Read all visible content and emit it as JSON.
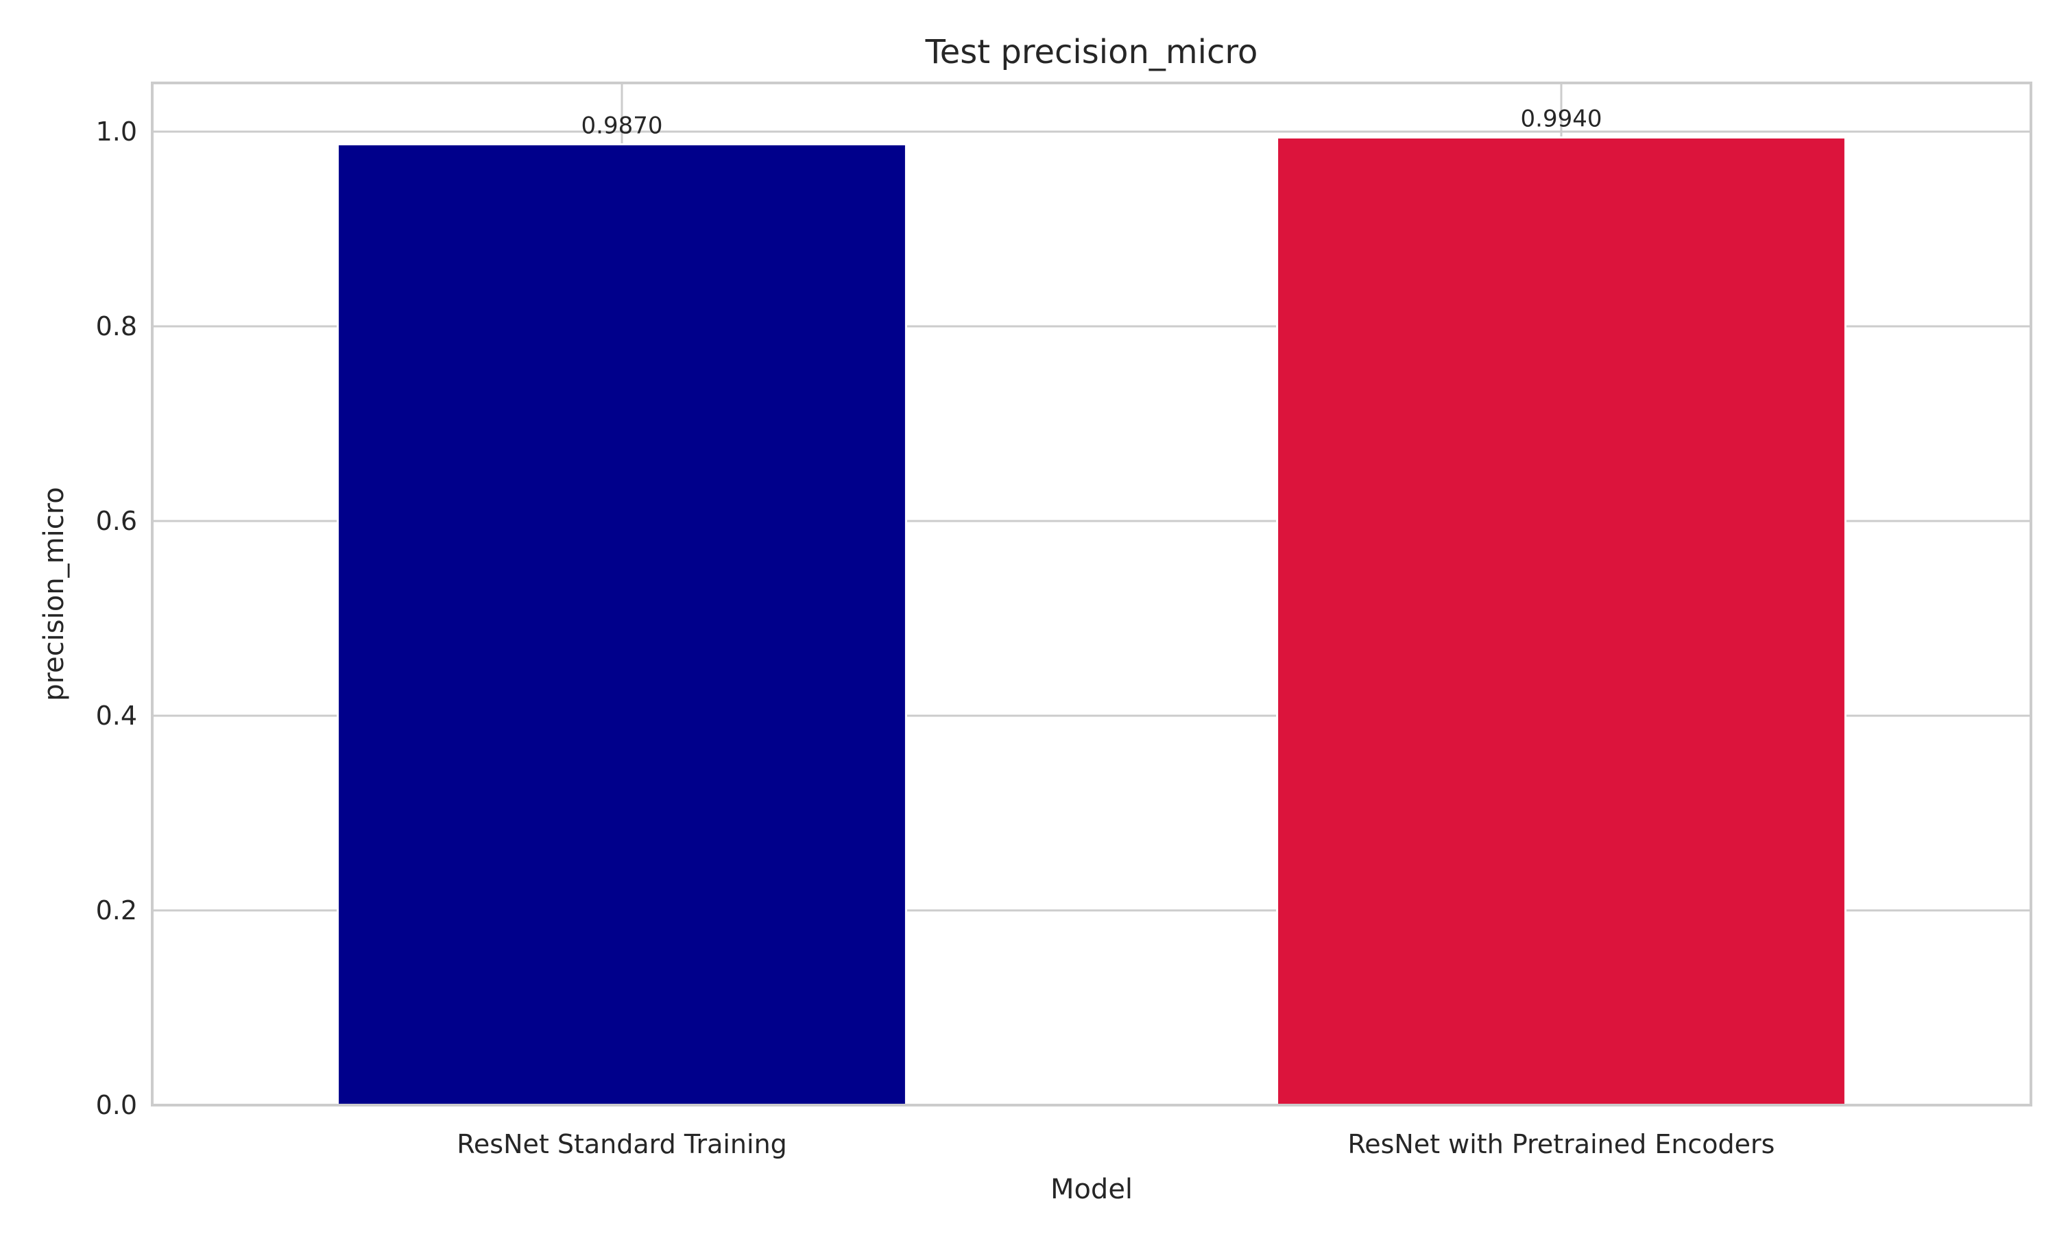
{
  "chart_data": {
    "type": "bar",
    "title": "Test precision_micro",
    "xlabel": "Model",
    "ylabel": "precision_micro",
    "categories": [
      "ResNet Standard Training",
      "ResNet with Pretrained Encoders"
    ],
    "values": [
      0.987,
      0.994
    ],
    "value_labels": [
      "0.9870",
      "0.9940"
    ],
    "colors": [
      "#00008b",
      "#dc143c"
    ],
    "ylim": [
      0,
      1.05
    ],
    "yticks": [
      0.0,
      0.2,
      0.4,
      0.6,
      0.8,
      1.0
    ],
    "ytick_labels": [
      "0.0",
      "0.2",
      "0.4",
      "0.6",
      "0.8",
      "1.0"
    ],
    "grid": true,
    "legend": false
  }
}
